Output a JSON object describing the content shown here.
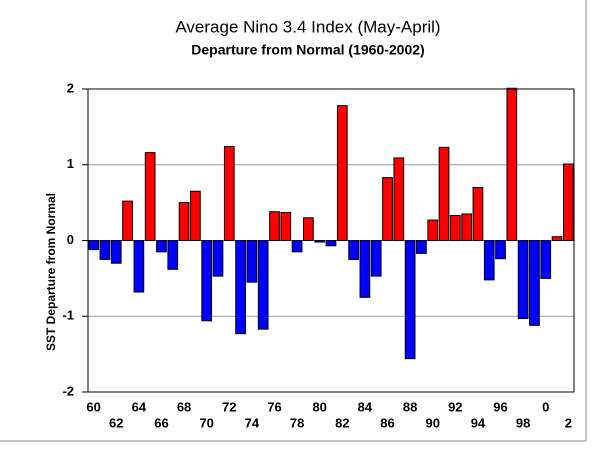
{
  "chart_data": {
    "type": "bar",
    "title": "Average Nino 3.4 Index (May-April)",
    "subtitle": "Departure from Normal (1960-2002)",
    "y_label": "SST Departure from Normal",
    "categories": [
      "60",
      null,
      "62",
      null,
      "64",
      null,
      "66",
      null,
      "68",
      null,
      "70",
      null,
      "72",
      null,
      "74",
      null,
      "76",
      null,
      "78",
      null,
      "80",
      null,
      "82",
      null,
      "84",
      null,
      "86",
      null,
      "88",
      null,
      "90",
      null,
      "92",
      null,
      "94",
      null,
      "96",
      null,
      "98",
      null,
      "0",
      null,
      "2"
    ],
    "values": [
      -0.12,
      -0.25,
      -0.3,
      0.52,
      -0.68,
      1.16,
      -0.15,
      -0.38,
      0.5,
      0.65,
      -1.06,
      -0.47,
      1.24,
      -1.23,
      -0.55,
      -1.17,
      0.38,
      0.37,
      -0.15,
      0.3,
      -0.02,
      -0.07,
      1.78,
      -0.25,
      -0.75,
      -0.47,
      0.83,
      1.09,
      -1.56,
      -0.17,
      0.27,
      1.23,
      0.33,
      0.35,
      0.7,
      -0.52,
      -0.24,
      2.01,
      -1.03,
      -1.12,
      -0.5,
      0.05,
      1.01
    ],
    "positive_color": "#ff0000",
    "negative_color": "#0000ff",
    "ylim": [
      -2,
      2
    ],
    "yticks": [
      -2,
      -1,
      0,
      1,
      2
    ],
    "grid": true
  }
}
